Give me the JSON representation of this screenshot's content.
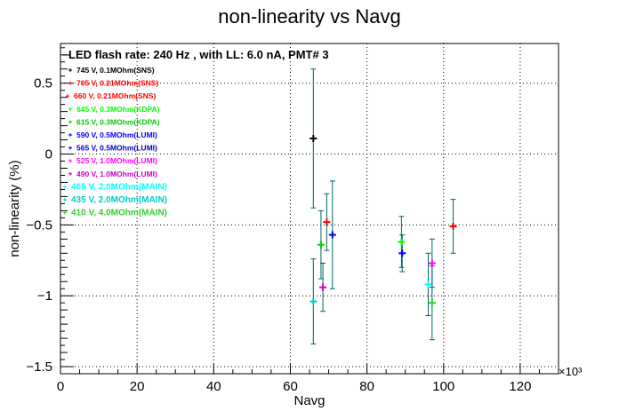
{
  "chart_data": {
    "type": "scatter",
    "title": "non-linearity vs Navg",
    "xlabel": "Navg",
    "ylabel": "non-linearity (%)",
    "x_multiplier": "×10³",
    "xlim": [
      0,
      130
    ],
    "ylim": [
      -1.55,
      0.78
    ],
    "x_ticks": [
      0,
      20,
      40,
      60,
      80,
      100,
      120
    ],
    "y_ticks": [
      -1.5,
      -1,
      -0.5,
      0,
      0.5
    ],
    "x_tick_labels": [
      "0",
      "20",
      "40",
      "60",
      "80",
      "100",
      "120"
    ],
    "y_tick_labels": [
      "−1.5",
      "−1",
      "−0.5",
      "0",
      "0.5"
    ],
    "grid": true,
    "legend_header": "LED flash rate: 240 Hz , with LL: 6.0 nA, PMT# 3",
    "legend_placement": "top-left",
    "series": [
      {
        "name": "745 V, 0.1MOhm(SNS)",
        "color": "#000000",
        "points": [
          {
            "x": 66.0,
            "y": 0.11,
            "err": 0.49
          }
        ]
      },
      {
        "name": "705 V, 0.21MOhm(SNS)",
        "color": "#ff0000",
        "points": []
      },
      {
        "name": "660 V, 0.21MOhm(SNS)",
        "color": "#ff0000",
        "points": [
          {
            "x": 69.5,
            "y": -0.48,
            "err": 0.2
          },
          {
            "x": 102.5,
            "y": -0.51,
            "err": 0.19
          }
        ]
      },
      {
        "name": "645 V, 0.3MOhm(KDPA)",
        "color": "#00ff00",
        "points": [
          {
            "x": 89.0,
            "y": -0.62,
            "err": 0.18
          }
        ]
      },
      {
        "name": "615 V, 0.3MOhm(KDPA)",
        "color": "#00cc00",
        "points": [
          {
            "x": 68.0,
            "y": -0.64,
            "err": 0.24
          }
        ]
      },
      {
        "name": "590 V, 0.5MOhm(LUMI)",
        "color": "#0000ff",
        "points": [
          {
            "x": 89.2,
            "y": -0.7,
            "err": 0.13
          }
        ]
      },
      {
        "name": "565 V, 0.5MOhm(LUMI)",
        "color": "#0000cc",
        "points": [
          {
            "x": 71.0,
            "y": -0.57,
            "err": 0.38
          }
        ]
      },
      {
        "name": "525 V, 1.0MOhm(LUMI)",
        "color": "#ff00ff",
        "points": [
          {
            "x": 97.0,
            "y": -0.77,
            "err": 0.17
          }
        ]
      },
      {
        "name": "490 V, 1.0MOhm(LUMI)",
        "color": "#cc00cc",
        "points": [
          {
            "x": 68.5,
            "y": -0.94,
            "err": 0.17
          }
        ]
      },
      {
        "name": "465 V, 2.0MOhm(MAIN)",
        "color": "#00ffff",
        "points": [
          {
            "x": 96.0,
            "y": -0.92,
            "err": 0.22
          }
        ]
      },
      {
        "name": "435 V, 2.0MOhm(MAIN)",
        "color": "#00cccc",
        "points": [
          {
            "x": 66.0,
            "y": -1.04,
            "err": 0.3
          }
        ]
      },
      {
        "name": "410 V, 4.0MOhm(MAIN)",
        "color": "#33cc33",
        "points": [
          {
            "x": 97.0,
            "y": -1.05,
            "err": 0.26
          }
        ]
      }
    ],
    "error_bar_color": "#006666"
  }
}
